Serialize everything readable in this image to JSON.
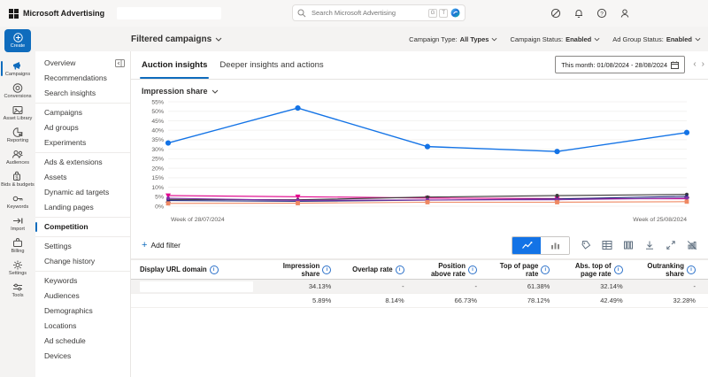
{
  "topbar": {
    "logo_text": "Microsoft Advertising",
    "search": {
      "placeholder": "Search Microsoft Advertising",
      "shortcut_keys": [
        "G",
        "T"
      ]
    },
    "icons": [
      "theme-toggle",
      "notifications",
      "help",
      "account"
    ]
  },
  "page_header": {
    "title": "Filtered campaigns",
    "filters": [
      {
        "label": "Campaign Type:",
        "value": "All Types"
      },
      {
        "label": "Campaign Status:",
        "value": "Enabled"
      },
      {
        "label": "Ad Group Status:",
        "value": "Enabled"
      }
    ]
  },
  "left_rail": {
    "create_label": "Create",
    "items": [
      {
        "label": "Campaigns",
        "selected": true
      },
      {
        "label": "Conversions",
        "selected": false
      },
      {
        "label": "Asset Library",
        "selected": false
      },
      {
        "label": "Reporting",
        "selected": false
      },
      {
        "label": "Audiences",
        "selected": false
      },
      {
        "label": "Bids & budgets",
        "selected": false
      },
      {
        "label": "Keywords",
        "selected": false
      },
      {
        "label": "Import",
        "selected": false
      },
      {
        "label": "Billing",
        "selected": false
      },
      {
        "label": "Settings",
        "selected": false
      },
      {
        "label": "Tools",
        "selected": false
      }
    ]
  },
  "nav_panel": {
    "groups": [
      [
        "Overview",
        "Recommendations",
        "Search insights"
      ],
      [
        "Campaigns",
        "Ad groups",
        "Experiments"
      ],
      [
        "Ads & extensions",
        "Assets",
        "Dynamic ad targets",
        "Landing pages"
      ],
      [
        "Competition"
      ],
      [
        "Settings",
        "Change history"
      ],
      [
        "Keywords",
        "Audiences",
        "Demographics",
        "Locations",
        "Ad schedule",
        "Devices"
      ]
    ],
    "selected": "Competition"
  },
  "tabs": [
    {
      "label": "Auction insights",
      "selected": true
    },
    {
      "label": "Deeper insights and actions",
      "selected": false
    }
  ],
  "date_range": "This month: 01/08/2024 - 28/08/2024",
  "chart_data": {
    "type": "line",
    "title": "Impression share",
    "x_points": 5,
    "x_first_label": "Week of 28/07/2024",
    "x_last_label": "Week of 25/08/2024",
    "ylim": [
      0,
      55
    ],
    "ytick_step": 5,
    "ytick_suffix": "%",
    "grid": true,
    "legend": "none",
    "series": [
      {
        "name": "series-1-you",
        "color": "#1373e6",
        "marker": "circle-big",
        "values": [
          33.3,
          51.7,
          31.4,
          28.8,
          38.8
        ]
      },
      {
        "name": "series-2",
        "color": "#e3008c",
        "marker": "triangle-down",
        "values": [
          5.6,
          5.0,
          4.3,
          4.0,
          3.9
        ]
      },
      {
        "name": "series-3",
        "color": "#3b3a39",
        "marker": "circle",
        "values": [
          3.6,
          3.4,
          4.8,
          5.6,
          6.2
        ]
      },
      {
        "name": "series-4",
        "color": "#20257a",
        "marker": "triangle-up",
        "values": [
          3.0,
          2.6,
          3.2,
          3.8,
          5.2
        ]
      },
      {
        "name": "series-5",
        "color": "#8331a7",
        "marker": "circle",
        "values": [
          4.2,
          3.1,
          3.3,
          3.4,
          4.3
        ]
      },
      {
        "name": "series-6",
        "color": "#ef8862",
        "marker": "square",
        "values": [
          1.5,
          1.6,
          2.1,
          2.1,
          2.4
        ]
      }
    ]
  },
  "toolbar": {
    "add_filter_label": "Add filter",
    "view_toggles": [
      "line-chart",
      "bar-chart"
    ],
    "icon_names": [
      "tags-icon",
      "table-icon",
      "columns-icon",
      "download-icon",
      "expand-icon",
      "hide-chart-icon"
    ]
  },
  "table": {
    "columns": [
      "Display URL domain",
      "Impression share",
      "Overlap rate",
      "Position above rate",
      "Top of page rate",
      "Abs. top of page rate",
      "Outranking share"
    ],
    "rows": [
      {
        "domain": "",
        "redacted": true,
        "highlight": true,
        "values": [
          "34.13%",
          "-",
          "-",
          "61.38%",
          "32.14%",
          "-"
        ]
      },
      {
        "domain": "",
        "redacted": false,
        "highlight": false,
        "values": [
          "5.89%",
          "8.14%",
          "66.73%",
          "78.12%",
          "42.49%",
          "32.28%"
        ]
      }
    ]
  },
  "colors": {
    "accent": "#0f6cbd",
    "chart_blue": "#1373e6",
    "row_highlight": "#f3f2f1"
  }
}
